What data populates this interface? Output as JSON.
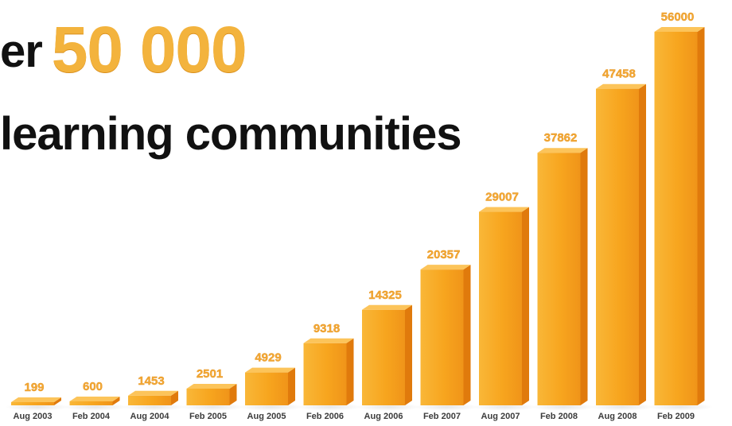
{
  "headline": {
    "line1_prefix": "er",
    "line1_highlight": "50 000",
    "line2": "learning communities"
  },
  "colors": {
    "bar_front": "#f7a51e",
    "bar_side": "#e07a0c",
    "bar_top": "#fcc45a",
    "value_label": "#f4a935",
    "highlight": "#f3b33d",
    "text_dark": "#111111"
  },
  "chart_data": {
    "type": "bar",
    "categories": [
      "Aug 2003",
      "Feb 2004",
      "Aug 2004",
      "Feb 2005",
      "Aug 2005",
      "Feb 2006",
      "Aug 2006",
      "Feb 2007",
      "Aug 2007",
      "Feb 2008",
      "Aug 2008",
      "Feb 2009"
    ],
    "values": [
      199,
      600,
      1453,
      2501,
      4929,
      9318,
      14325,
      20357,
      29007,
      37862,
      47458,
      56000
    ],
    "value_labels": [
      "199",
      "600",
      "1453",
      "2501",
      "4929",
      "9318",
      "14325",
      "20357",
      "29007",
      "37862",
      "47458",
      "56000"
    ],
    "title": "",
    "xlabel": "",
    "ylabel": "",
    "ylim": [
      0,
      56000
    ],
    "grid": false,
    "legend": "none",
    "style": "3d-bar"
  }
}
